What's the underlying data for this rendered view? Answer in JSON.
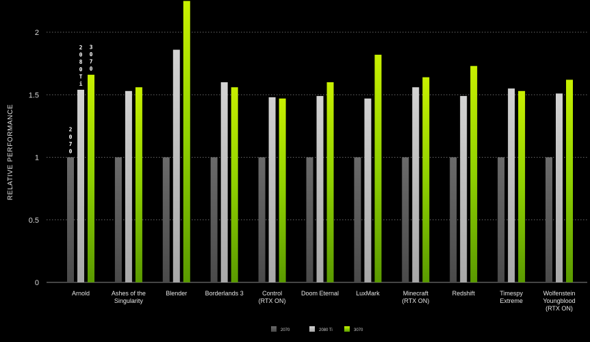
{
  "chart_data": {
    "type": "bar",
    "title": "",
    "xlabel": "",
    "ylabel": "RELATIVE PERFORMANCE",
    "ylim": [
      0,
      2.2
    ],
    "yticks": [
      0,
      0.5,
      1,
      1.5,
      2
    ],
    "ytick_labels": [
      "0",
      "0.5",
      "1",
      "1.5",
      "2"
    ],
    "grid": "horizontal dotted",
    "legend_position": "bottom-center",
    "categories": [
      [
        "Arnold"
      ],
      [
        "Ashes of the",
        "Singularity"
      ],
      [
        "Blender"
      ],
      [
        "Borderlands 3"
      ],
      [
        "Control",
        "(RTX ON)"
      ],
      [
        "Doom Eternal"
      ],
      [
        "LuxMark"
      ],
      [
        "Minecraft",
        "(RTX ON)"
      ],
      [
        "Redshift"
      ],
      [
        "Timespy",
        "Extreme"
      ],
      [
        "Wolfenstein",
        "Youngblood",
        "(RTX ON)"
      ]
    ],
    "series": [
      {
        "name": "2070",
        "color": "#5a5a5a",
        "values": [
          1,
          1,
          1,
          1,
          1,
          1,
          1,
          1,
          1,
          1,
          1
        ]
      },
      {
        "name": "2080 Ti",
        "color": "#c4c4c4",
        "values": [
          1.54,
          1.53,
          1.86,
          1.6,
          1.48,
          1.49,
          1.47,
          1.56,
          1.49,
          1.55,
          1.51
        ]
      },
      {
        "name": "3070",
        "color": "#76b900",
        "values": [
          1.66,
          1.56,
          2.25,
          1.56,
          1.47,
          1.6,
          1.82,
          1.64,
          1.73,
          1.53,
          1.62
        ]
      }
    ],
    "annotations": [
      {
        "category_index": 0,
        "series_index": 0,
        "text": "2070"
      },
      {
        "category_index": 0,
        "series_index": 1,
        "text": "2080Ti"
      },
      {
        "category_index": 0,
        "series_index": 2,
        "text": "3070"
      }
    ]
  }
}
